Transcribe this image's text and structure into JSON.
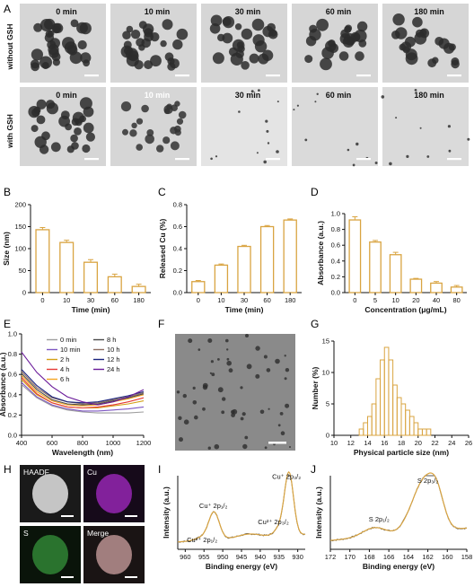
{
  "panel_labels": [
    "A",
    "B",
    "C",
    "D",
    "E",
    "F",
    "G",
    "H",
    "I",
    "J"
  ],
  "panel_a": {
    "row_labels": [
      "without GSH",
      "with GSH"
    ],
    "times": [
      "0 min",
      "10 min",
      "30 min",
      "60 min",
      "180 min"
    ]
  },
  "chart_data": [
    {
      "id": "B",
      "type": "bar",
      "xlabel": "Time (min)",
      "ylabel": "Size (nm)",
      "categories": [
        "0",
        "10",
        "30",
        "60",
        "180"
      ],
      "values": [
        143,
        114,
        69,
        36,
        14
      ],
      "errors": [
        5,
        5,
        6,
        6,
        5
      ],
      "ylim": [
        0,
        200
      ],
      "yticks": [
        0,
        50,
        100,
        150,
        200
      ],
      "color": "#d9a441"
    },
    {
      "id": "C",
      "type": "bar",
      "xlabel": "Time (min)",
      "ylabel": "Released Cu (%)",
      "categories": [
        "0",
        "10",
        "30",
        "60",
        "180"
      ],
      "values": [
        0.1,
        0.25,
        0.42,
        0.6,
        0.66
      ],
      "errors": [
        0.01,
        0.01,
        0.01,
        0.01,
        0.01
      ],
      "ylim": [
        0,
        0.8
      ],
      "yticks": [
        0.0,
        0.2,
        0.4,
        0.6,
        0.8
      ],
      "color": "#d9a441"
    },
    {
      "id": "D",
      "type": "bar",
      "xlabel": "Concentration (μg/mL)",
      "ylabel": "Absorbance (a.u.)",
      "categories": [
        "0",
        "5",
        "10",
        "20",
        "40",
        "80"
      ],
      "values": [
        0.92,
        0.64,
        0.48,
        0.17,
        0.12,
        0.07
      ],
      "errors": [
        0.04,
        0.02,
        0.03,
        0.01,
        0.02,
        0.02
      ],
      "ylim": [
        0,
        1.0
      ],
      "yticks": [
        0.0,
        0.2,
        0.4,
        0.6,
        0.8,
        1.0
      ],
      "color": "#d9a441"
    },
    {
      "id": "E",
      "type": "line",
      "xlabel": "Wavelength (nm)",
      "ylabel": "Absorbance (a.u.)",
      "xlim": [
        400,
        1200
      ],
      "xticks": [
        400,
        600,
        800,
        1000,
        1200
      ],
      "ylim": [
        0,
        1.0
      ],
      "yticks": [
        0.0,
        0.2,
        0.4,
        0.6,
        0.8,
        1.0
      ],
      "series": [
        {
          "name": "0 min",
          "color": "#9e9e9e",
          "x": [
            400,
            500,
            600,
            700,
            800,
            900,
            1000,
            1100,
            1200
          ],
          "y": [
            0.5,
            0.37,
            0.29,
            0.25,
            0.23,
            0.22,
            0.22,
            0.22,
            0.23
          ]
        },
        {
          "name": "10 min",
          "color": "#7e57c2",
          "x": [
            400,
            500,
            600,
            700,
            800,
            900,
            1000,
            1100,
            1200
          ],
          "y": [
            0.52,
            0.38,
            0.3,
            0.26,
            0.24,
            0.24,
            0.25,
            0.26,
            0.28
          ]
        },
        {
          "name": "2 h",
          "color": "#d4a017",
          "x": [
            400,
            500,
            600,
            700,
            800,
            900,
            1000,
            1100,
            1200
          ],
          "y": [
            0.55,
            0.4,
            0.32,
            0.28,
            0.27,
            0.27,
            0.29,
            0.31,
            0.34
          ]
        },
        {
          "name": "4 h",
          "color": "#e53935",
          "x": [
            400,
            500,
            600,
            700,
            800,
            900,
            1000,
            1100,
            1200
          ],
          "y": [
            0.57,
            0.41,
            0.32,
            0.28,
            0.27,
            0.28,
            0.3,
            0.33,
            0.37
          ]
        },
        {
          "name": "6 h",
          "color": "#f5a623",
          "x": [
            400,
            500,
            600,
            700,
            800,
            900,
            1000,
            1100,
            1200
          ],
          "y": [
            0.59,
            0.43,
            0.34,
            0.3,
            0.29,
            0.3,
            0.33,
            0.36,
            0.4
          ]
        },
        {
          "name": "8 h",
          "color": "#4a4a4a",
          "x": [
            400,
            500,
            600,
            700,
            800,
            900,
            1000,
            1100,
            1200
          ],
          "y": [
            0.61,
            0.45,
            0.35,
            0.31,
            0.3,
            0.31,
            0.34,
            0.37,
            0.41
          ]
        },
        {
          "name": "10 h",
          "color": "#8d6e63",
          "x": [
            400,
            500,
            600,
            700,
            800,
            900,
            1000,
            1100,
            1200
          ],
          "y": [
            0.63,
            0.47,
            0.37,
            0.33,
            0.31,
            0.32,
            0.35,
            0.38,
            0.42
          ]
        },
        {
          "name": "12 h",
          "color": "#1a237e",
          "x": [
            400,
            500,
            600,
            700,
            800,
            900,
            1000,
            1100,
            1200
          ],
          "y": [
            0.65,
            0.49,
            0.38,
            0.33,
            0.32,
            0.33,
            0.36,
            0.39,
            0.43
          ]
        },
        {
          "name": "24 h",
          "color": "#6a1b9a",
          "x": [
            400,
            500,
            600,
            700,
            800,
            900,
            1000,
            1100,
            1200
          ],
          "y": [
            0.82,
            0.62,
            0.48,
            0.38,
            0.33,
            0.3,
            0.33,
            0.38,
            0.45
          ]
        }
      ]
    },
    {
      "id": "G",
      "type": "bar",
      "xlabel": "Physical particle size (nm)",
      "ylabel": "Number (%)",
      "xlim": [
        10,
        26
      ],
      "xticks": [
        10,
        12,
        14,
        16,
        18,
        20,
        22,
        24,
        26
      ],
      "ylim": [
        0,
        15
      ],
      "yticks": [
        0,
        5,
        10,
        15
      ],
      "bin_width": 0.5,
      "bin_starts": [
        13.0,
        13.5,
        14.0,
        14.5,
        15.0,
        15.5,
        16.0,
        16.5,
        17.0,
        17.5,
        18.0,
        18.5,
        19.0,
        19.5,
        20.0,
        20.5,
        21.0
      ],
      "values": [
        1,
        2,
        3,
        5,
        9,
        12,
        14,
        12,
        8,
        6,
        5,
        4,
        3,
        2,
        1,
        1,
        1
      ],
      "color": "#d9a441"
    },
    {
      "id": "I",
      "type": "line",
      "xlabel": "Binding energy (eV)",
      "ylabel": "Intensity (a.u.)",
      "xlim": [
        962,
        928
      ],
      "xticks": [
        960,
        955,
        950,
        945,
        940,
        935,
        930
      ],
      "annotations": [
        {
          "text": "Cu⁺ 2p₁/₂",
          "x": 952.5,
          "y": 0.56
        },
        {
          "text": "Cu²⁺ 2p₁/₂",
          "x": 955.5,
          "y": 0.1
        },
        {
          "text": "Cu²⁺ 2p₃/₂",
          "x": 936.5,
          "y": 0.34
        },
        {
          "text": "Cu⁺ 2p₃/₂",
          "x": 933,
          "y": 0.96
        }
      ]
    },
    {
      "id": "J",
      "type": "line",
      "xlabel": "Binding energy (eV)",
      "ylabel": "Intensity (a.u.)",
      "xlim": [
        172,
        158
      ],
      "xticks": [
        172,
        170,
        168,
        166,
        164,
        162,
        160,
        158
      ],
      "annotations": [
        {
          "text": "S 2p₁/₂",
          "x": 167.0,
          "y": 0.38
        },
        {
          "text": "S 2p₃/₂",
          "x": 162.0,
          "y": 0.9
        }
      ]
    }
  ],
  "panel_h": {
    "labels": [
      "HAADF",
      "Cu",
      "S",
      "Merge"
    ]
  }
}
